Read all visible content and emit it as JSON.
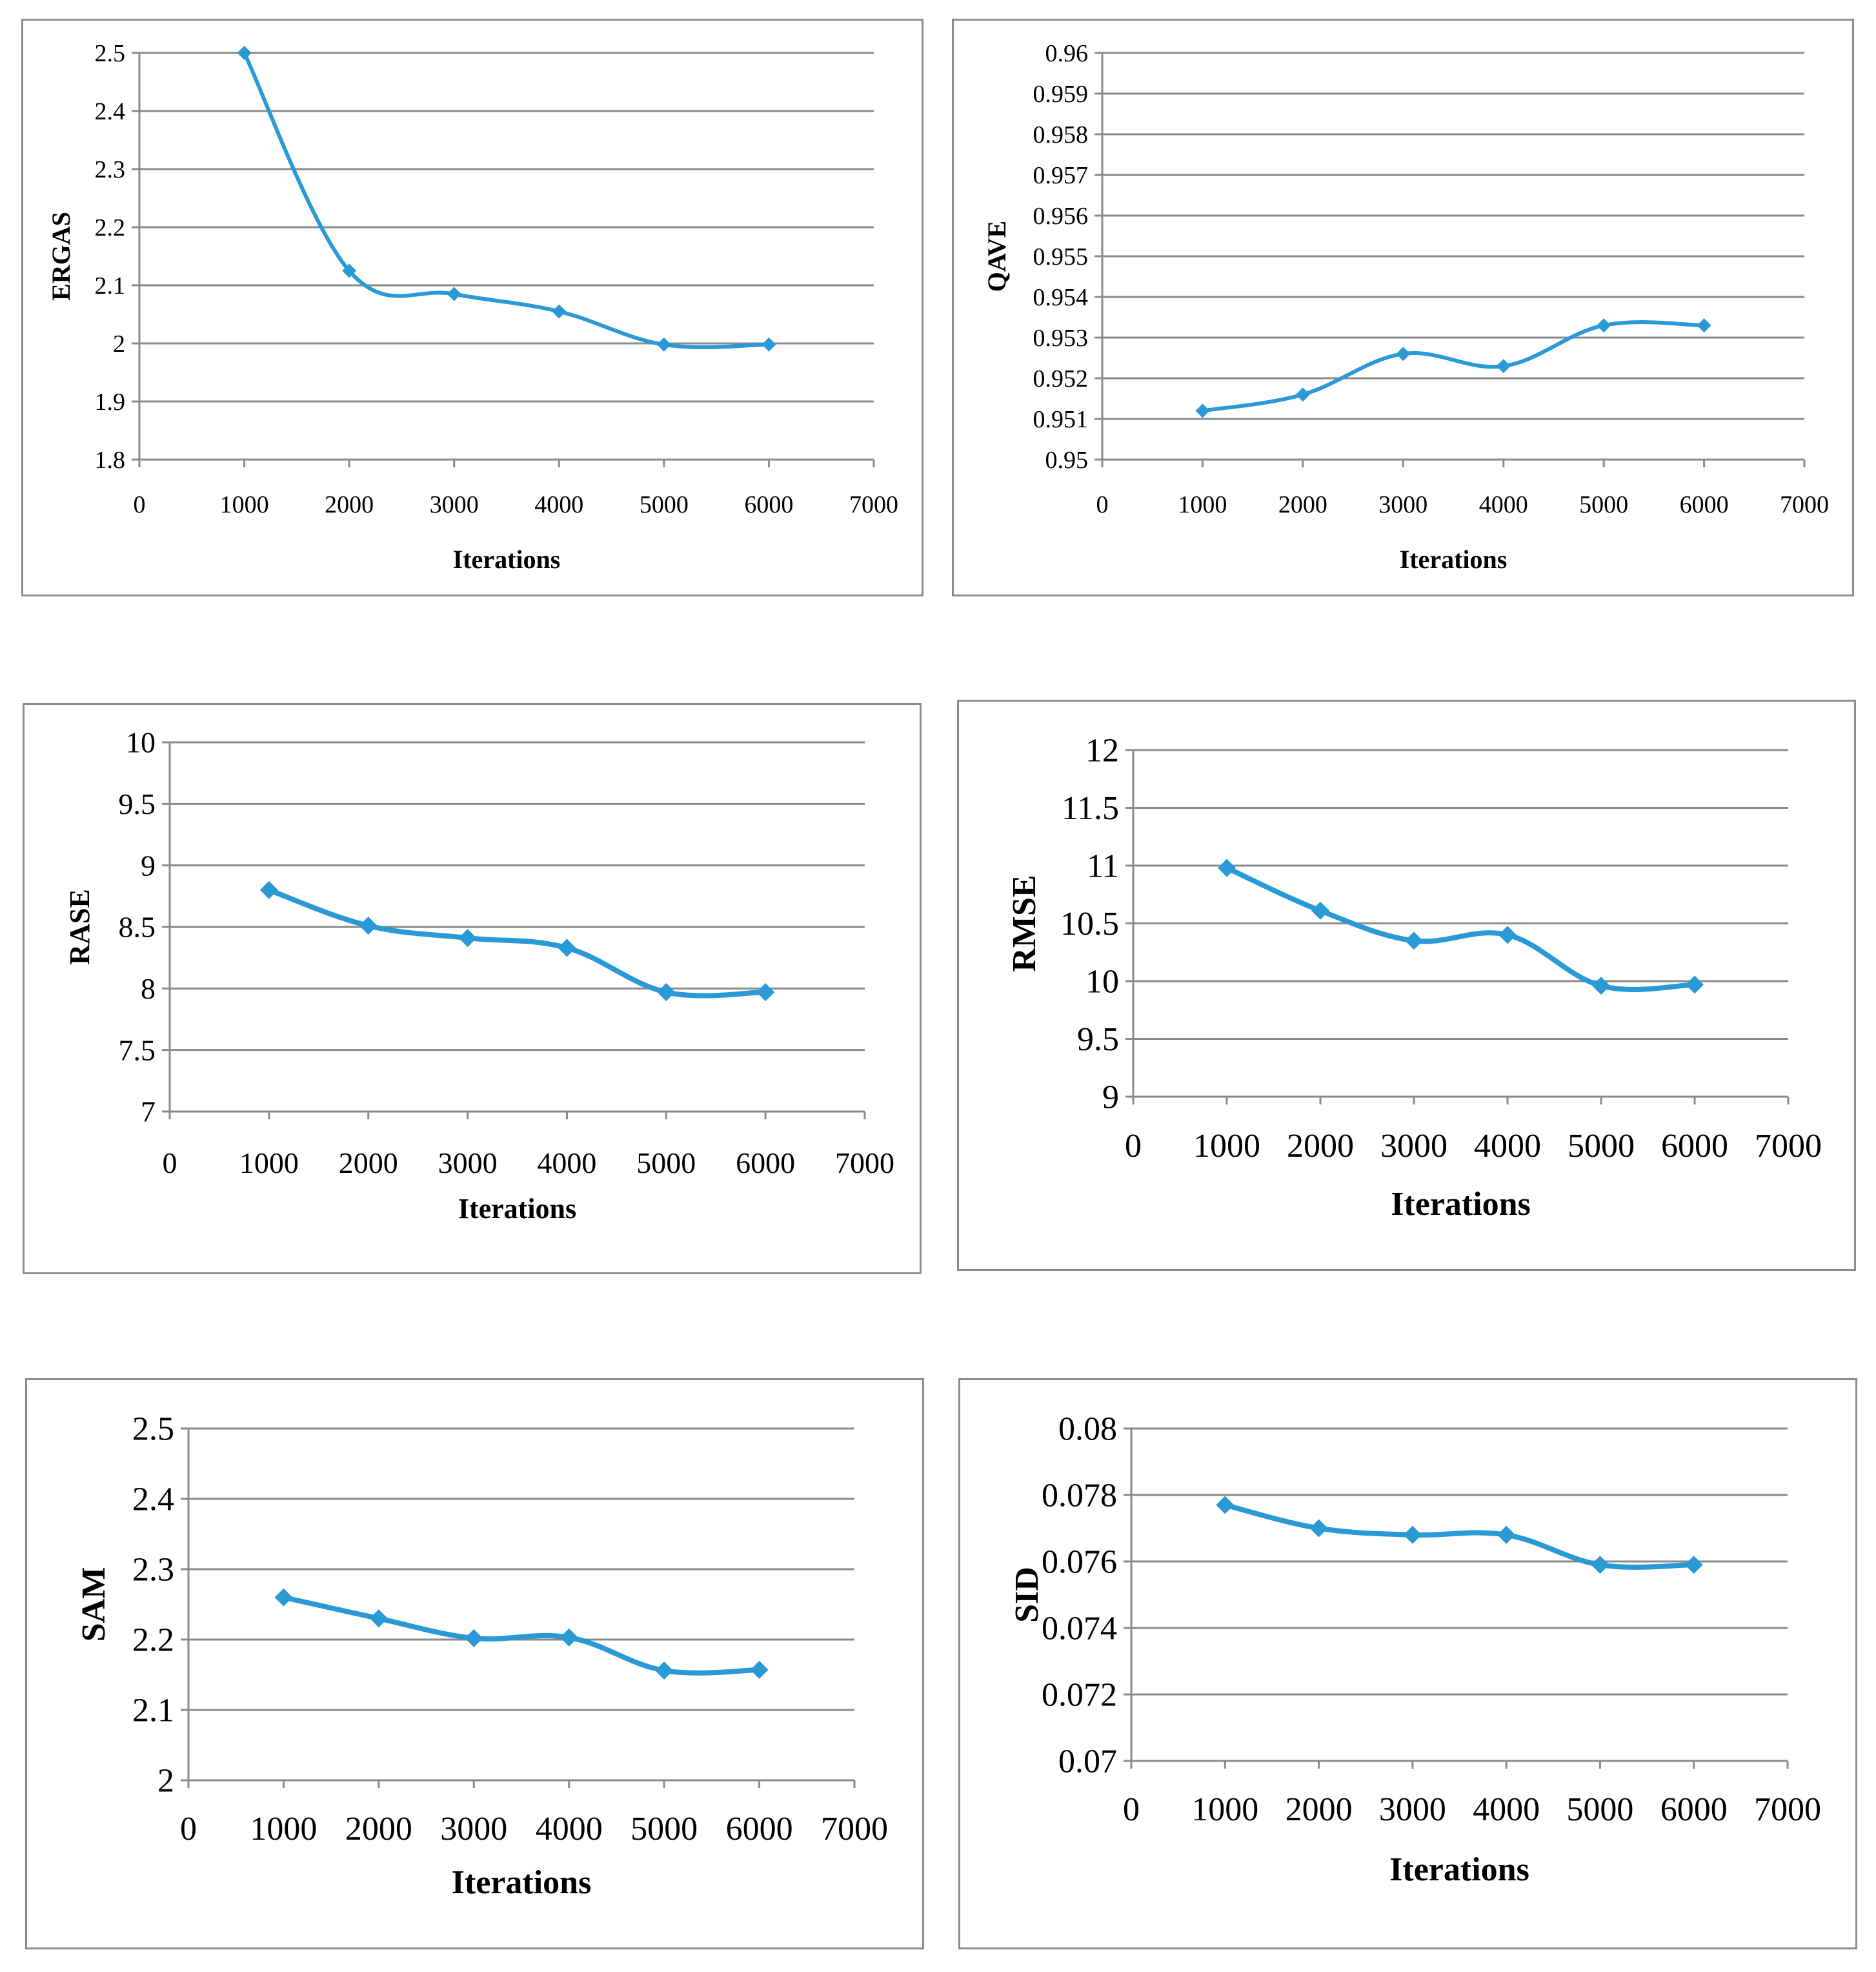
{
  "style": {
    "line_color": "#2a9ad6",
    "grid_color": "#8a8a8a",
    "border_color": "#8c8c8c"
  },
  "chart_data": [
    {
      "type": "line",
      "id": "ergas",
      "title": "",
      "xlabel": "Iterations",
      "ylabel": "ERGAS",
      "x": [
        1000,
        2000,
        3000,
        4000,
        5000,
        6000
      ],
      "series": [
        {
          "name": "ERGAS",
          "values": [
            2.5,
            2.125,
            2.085,
            2.055,
            1.998,
            1.998
          ]
        }
      ],
      "xlim": [
        0,
        7000
      ],
      "ylim": [
        1.8,
        2.5
      ],
      "x_ticks": [
        "0",
        "1000",
        "2000",
        "3000",
        "4000",
        "5000",
        "6000",
        "7000"
      ],
      "y_ticks": [
        "1.8",
        "1.9",
        "2",
        "2.1",
        "2.2",
        "2.3",
        "2.4",
        "2.5"
      ],
      "grid": true,
      "legend": "none"
    },
    {
      "type": "line",
      "id": "qave",
      "title": "",
      "xlabel": "Iterations",
      "ylabel": "QAVE",
      "x": [
        1000,
        2000,
        3000,
        4000,
        5000,
        6000
      ],
      "series": [
        {
          "name": "QAVE",
          "values": [
            0.9512,
            0.9516,
            0.9526,
            0.9523,
            0.9533,
            0.9533
          ]
        }
      ],
      "xlim": [
        0,
        7000
      ],
      "ylim": [
        0.95,
        0.96
      ],
      "x_ticks": [
        "0",
        "1000",
        "2000",
        "3000",
        "4000",
        "5000",
        "6000",
        "7000"
      ],
      "y_ticks": [
        "0.95",
        "0.951",
        "0.952",
        "0.953",
        "0.954",
        "0.955",
        "0.956",
        "0.957",
        "0.958",
        "0.959",
        "0.96"
      ],
      "grid": true,
      "legend": "none"
    },
    {
      "type": "line",
      "id": "rase",
      "title": "",
      "xlabel": "Iterations",
      "ylabel": "RASE",
      "x": [
        1000,
        2000,
        3000,
        4000,
        5000,
        6000
      ],
      "series": [
        {
          "name": "RASE",
          "values": [
            8.8,
            8.51,
            8.41,
            8.33,
            7.97,
            7.97
          ]
        }
      ],
      "xlim": [
        0,
        7000
      ],
      "ylim": [
        7,
        10
      ],
      "x_ticks": [
        "0",
        "1000",
        "2000",
        "3000",
        "4000",
        "5000",
        "6000",
        "7000"
      ],
      "y_ticks": [
        "7",
        "7.5",
        "8",
        "8.5",
        "9",
        "9.5",
        "10"
      ],
      "grid": true,
      "legend": "none"
    },
    {
      "type": "line",
      "id": "rmse",
      "title": "",
      "xlabel": "Iterations",
      "ylabel": "RMSE",
      "x": [
        1000,
        2000,
        3000,
        4000,
        5000,
        6000
      ],
      "series": [
        {
          "name": "RMSE",
          "values": [
            10.98,
            10.61,
            10.35,
            10.4,
            9.96,
            9.97
          ]
        }
      ],
      "xlim": [
        0,
        7000
      ],
      "ylim": [
        9,
        12
      ],
      "x_ticks": [
        "0",
        "1000",
        "2000",
        "3000",
        "4000",
        "5000",
        "6000",
        "7000"
      ],
      "y_ticks": [
        "9",
        "9.5",
        "10",
        "10.5",
        "11",
        "11.5",
        "12"
      ],
      "grid": true,
      "legend": "none"
    },
    {
      "type": "line",
      "id": "sam",
      "title": "",
      "xlabel": "Iterations",
      "ylabel": "SAM",
      "x": [
        1000,
        2000,
        3000,
        4000,
        5000,
        6000
      ],
      "series": [
        {
          "name": "SAM",
          "values": [
            2.26,
            2.23,
            2.202,
            2.203,
            2.156,
            2.157
          ]
        }
      ],
      "xlim": [
        0,
        7000
      ],
      "ylim": [
        2,
        2.5
      ],
      "x_ticks": [
        "0",
        "1000",
        "2000",
        "3000",
        "4000",
        "5000",
        "6000",
        "7000"
      ],
      "y_ticks": [
        "2",
        "2.1",
        "2.2",
        "2.3",
        "2.4",
        "2.5"
      ],
      "grid": true,
      "legend": "none"
    },
    {
      "type": "line",
      "id": "sid",
      "title": "",
      "xlabel": "Iterations",
      "ylabel": "SID",
      "x": [
        1000,
        2000,
        3000,
        4000,
        5000,
        6000
      ],
      "series": [
        {
          "name": "SID",
          "values": [
            0.0777,
            0.077,
            0.0768,
            0.0768,
            0.0759,
            0.0759
          ]
        }
      ],
      "xlim": [
        0,
        7000
      ],
      "ylim": [
        0.07,
        0.08
      ],
      "x_ticks": [
        "0",
        "1000",
        "2000",
        "3000",
        "4000",
        "5000",
        "6000",
        "7000"
      ],
      "y_ticks": [
        "0.07",
        "0.072",
        "0.074",
        "0.076",
        "0.078",
        "0.08"
      ],
      "grid": true,
      "legend": "none"
    }
  ]
}
